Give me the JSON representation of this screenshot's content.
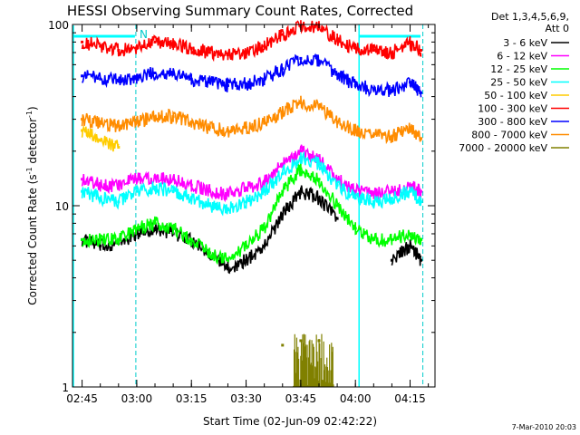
{
  "chart_data": {
    "type": "line",
    "title": "HESSI Observing Summary Count Rates, Corrected",
    "xlabel": "Start Time (02-Jun-09 02:42:22)",
    "ylabel": "Corrected Count Rate (s",
    "ylabel_sup1": "-1",
    "ylabel_mid": " detector",
    "ylabel_sup2": "-1",
    "ylabel_end": ")",
    "y_scale": "log",
    "ylim": [
      1,
      100
    ],
    "xlim": [
      "02:42:22",
      "04:21:50"
    ],
    "x_ticks": [
      "02:45",
      "03:00",
      "03:15",
      "03:30",
      "03:45",
      "04:00",
      "04:15"
    ],
    "y_tick_labels": [
      "1",
      "10",
      "100"
    ],
    "legend_header": [
      "Det 1,3,4,5,6,9,",
      "Att 0"
    ],
    "legend_placement": "right",
    "night_marker": "N",
    "timestamp": "7-Mar-2010 20:03",
    "grid": false,
    "x": [
      "02:45",
      "02:50",
      "02:55",
      "03:00",
      "03:05",
      "03:10",
      "03:15",
      "03:20",
      "03:25",
      "03:30",
      "03:35",
      "03:40",
      "03:45",
      "03:50",
      "03:55",
      "04:00",
      "04:05",
      "04:10",
      "04:15",
      "04:18"
    ],
    "series": [
      {
        "name": "3 - 6 keV",
        "color": "#000000",
        "values": [
          6.5,
          6.0,
          6.2,
          7.0,
          7.5,
          7.0,
          6.5,
          5.5,
          4.5,
          5.0,
          6.0,
          9.0,
          12.0,
          11.0,
          8.5,
          null,
          null,
          5.0,
          6.0,
          5.0
        ]
      },
      {
        "name": "6 - 12 keV",
        "color": "#ff00ff",
        "values": [
          14.0,
          13.0,
          13.0,
          14.0,
          14.5,
          14.0,
          13.0,
          12.0,
          11.5,
          12.5,
          13.5,
          17.0,
          20.0,
          18.0,
          14.0,
          12.0,
          11.5,
          12.0,
          13.0,
          12.0
        ]
      },
      {
        "name": "12 - 25 keV",
        "color": "#00ff00",
        "values": [
          6.5,
          6.5,
          6.5,
          7.5,
          8.0,
          7.5,
          6.5,
          5.5,
          5.0,
          6.0,
          7.5,
          12.0,
          16.0,
          14.0,
          10.0,
          7.5,
          6.5,
          6.5,
          7.0,
          6.5
        ]
      },
      {
        "name": "25 - 50 keV",
        "color": "#00ffff",
        "values": [
          12.0,
          11.0,
          10.5,
          12.0,
          12.5,
          12.0,
          11.0,
          10.0,
          9.5,
          10.5,
          12.0,
          15.0,
          18.5,
          17.0,
          13.0,
          11.0,
          10.5,
          11.0,
          12.0,
          10.5
        ]
      },
      {
        "name": "50 - 100 keV",
        "color": "#ffcc00",
        "values": [
          26.0,
          23.0,
          21.0,
          null,
          null,
          null,
          null,
          null,
          null,
          null,
          null,
          null,
          null,
          null,
          null,
          null,
          null,
          null,
          null,
          null
        ]
      },
      {
        "name": "100 - 300 keV",
        "color": "#ff0000",
        "values": [
          80.0,
          76.0,
          72.0,
          75.0,
          80.0,
          78.0,
          74.0,
          70.0,
          68.0,
          70.0,
          76.0,
          88.0,
          98.0,
          96.0,
          82.0,
          74.0,
          72.0,
          70.0,
          79.0,
          72.0
        ]
      },
      {
        "name": "300 - 800 keV",
        "color": "#0000ff",
        "values": [
          52.0,
          50.0,
          49.0,
          51.0,
          54.0,
          53.0,
          50.0,
          48.0,
          46.0,
          47.0,
          50.0,
          57.0,
          65.0,
          63.0,
          53.0,
          46.0,
          44.0,
          43.0,
          48.0,
          42.0
        ]
      },
      {
        "name": "800 - 7000 keV",
        "color": "#ff8c00",
        "values": [
          30.0,
          28.5,
          27.5,
          29.0,
          31.0,
          31.0,
          29.0,
          27.0,
          26.0,
          27.0,
          28.5,
          33.0,
          37.0,
          35.5,
          29.0,
          26.0,
          24.5,
          24.0,
          27.0,
          23.5
        ]
      },
      {
        "name": "7000 - 20000 keV",
        "color": "#808000",
        "values": [
          null,
          null,
          null,
          null,
          null,
          null,
          null,
          null,
          null,
          null,
          null,
          1.7,
          1.8,
          1.8,
          null,
          null,
          null,
          null,
          null,
          null
        ]
      }
    ]
  }
}
